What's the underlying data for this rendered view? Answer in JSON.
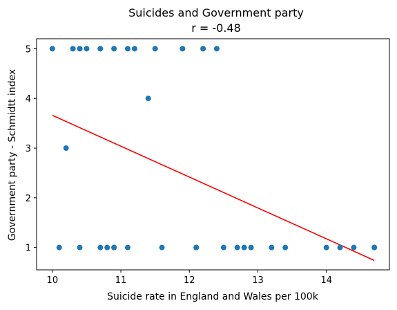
{
  "chart_data": {
    "type": "scatter",
    "title": "Suicides and Government party",
    "subtitle": "r = -0.48",
    "xlabel": "Suicide rate in England and Wales per 100k",
    "ylabel": "Government party - Schmidtt index",
    "xlim": [
      9.77,
      14.92
    ],
    "ylim": [
      0.55,
      5.2
    ],
    "xticks": [
      "10",
      "11",
      "12",
      "13",
      "14"
    ],
    "yticks": [
      "1",
      "2",
      "3",
      "4",
      "5"
    ],
    "grid": false,
    "point_color": "#1f77b4",
    "line_color": "#ff0000",
    "points": [
      {
        "x": 10.0,
        "y": 5
      },
      {
        "x": 10.3,
        "y": 5
      },
      {
        "x": 10.4,
        "y": 5
      },
      {
        "x": 10.5,
        "y": 5
      },
      {
        "x": 10.7,
        "y": 5
      },
      {
        "x": 10.9,
        "y": 5
      },
      {
        "x": 11.1,
        "y": 5
      },
      {
        "x": 11.2,
        "y": 5
      },
      {
        "x": 11.5,
        "y": 5
      },
      {
        "x": 11.9,
        "y": 5
      },
      {
        "x": 12.2,
        "y": 5
      },
      {
        "x": 12.4,
        "y": 5
      },
      {
        "x": 11.4,
        "y": 4
      },
      {
        "x": 10.2,
        "y": 3
      },
      {
        "x": 10.1,
        "y": 1
      },
      {
        "x": 10.4,
        "y": 1
      },
      {
        "x": 10.7,
        "y": 1
      },
      {
        "x": 10.8,
        "y": 1
      },
      {
        "x": 10.9,
        "y": 1
      },
      {
        "x": 10.9,
        "y": 1
      },
      {
        "x": 11.1,
        "y": 1
      },
      {
        "x": 11.6,
        "y": 1
      },
      {
        "x": 12.1,
        "y": 1
      },
      {
        "x": 12.1,
        "y": 1
      },
      {
        "x": 12.5,
        "y": 1
      },
      {
        "x": 12.7,
        "y": 1
      },
      {
        "x": 12.8,
        "y": 1
      },
      {
        "x": 12.9,
        "y": 1
      },
      {
        "x": 13.2,
        "y": 1
      },
      {
        "x": 13.4,
        "y": 1
      },
      {
        "x": 14.0,
        "y": 1
      },
      {
        "x": 14.2,
        "y": 1
      },
      {
        "x": 14.4,
        "y": 1
      },
      {
        "x": 14.7,
        "y": 1
      },
      {
        "x": 14.7,
        "y": 1
      }
    ],
    "fit_line": {
      "x": [
        10.0,
        14.7
      ],
      "y": [
        3.66,
        0.74
      ]
    }
  }
}
